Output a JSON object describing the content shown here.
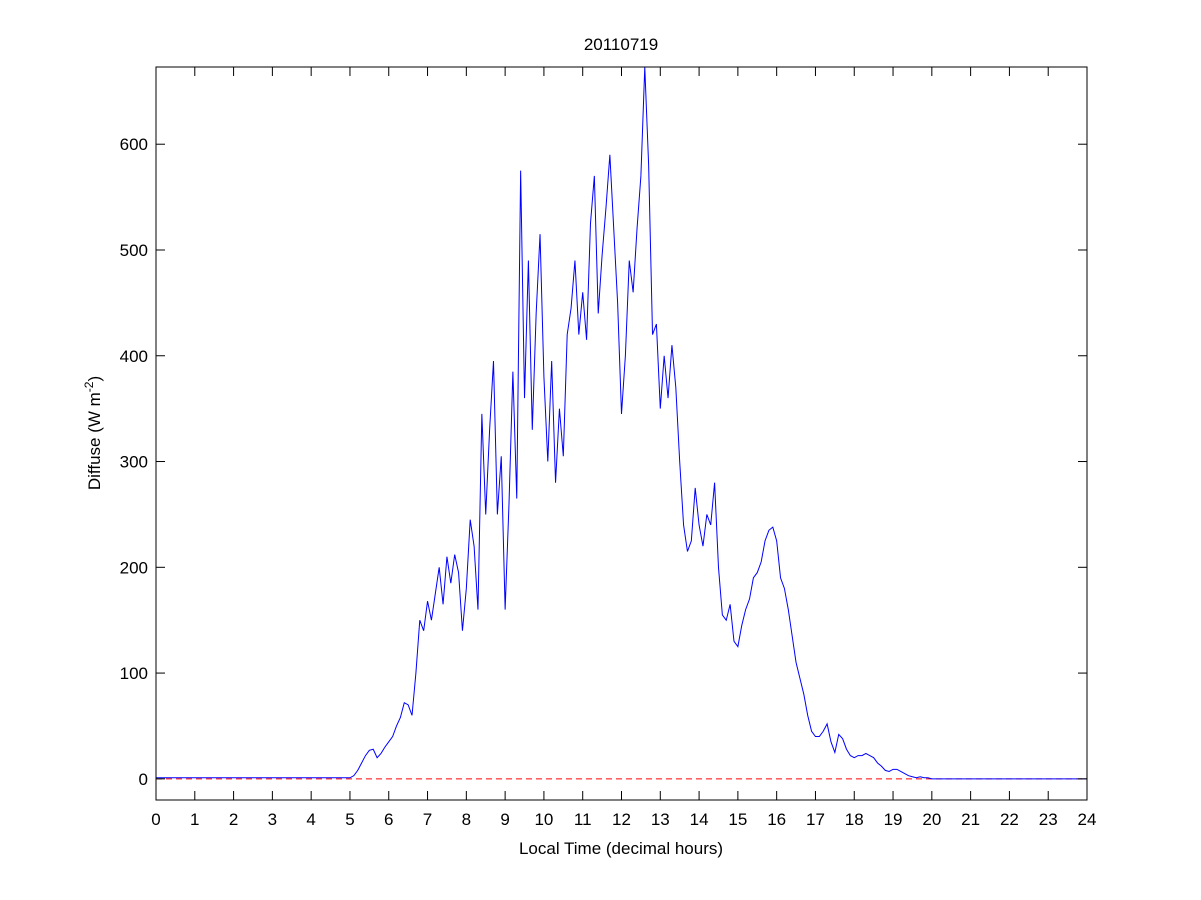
{
  "chart_data": {
    "type": "line",
    "title": "20110719",
    "xlabel": "Local Time (decimal hours)",
    "ylabel": {
      "text": "Diffuse (W m",
      "superscript": "-2",
      "suffix": ")"
    },
    "x": [
      0,
      1,
      2,
      3,
      4,
      5.0,
      5.1,
      5.2,
      5.3,
      5.4,
      5.5,
      5.6,
      5.7,
      5.8,
      5.9,
      6.0,
      6.1,
      6.2,
      6.3,
      6.4,
      6.5,
      6.6,
      6.7,
      6.8,
      6.9,
      7.0,
      7.1,
      7.2,
      7.3,
      7.4,
      7.5,
      7.6,
      7.7,
      7.8,
      7.9,
      8.0,
      8.1,
      8.2,
      8.3,
      8.4,
      8.5,
      8.6,
      8.7,
      8.8,
      8.9,
      9.0,
      9.1,
      9.2,
      9.3,
      9.4,
      9.5,
      9.6,
      9.7,
      9.8,
      9.9,
      10.0,
      10.1,
      10.2,
      10.3,
      10.4,
      10.5,
      10.6,
      10.7,
      10.8,
      10.9,
      11.0,
      11.1,
      11.2,
      11.3,
      11.4,
      11.5,
      11.6,
      11.7,
      11.8,
      11.9,
      12.0,
      12.1,
      12.2,
      12.3,
      12.4,
      12.5,
      12.6,
      12.7,
      12.8,
      12.9,
      13.0,
      13.1,
      13.2,
      13.3,
      13.4,
      13.5,
      13.6,
      13.7,
      13.8,
      13.9,
      14.0,
      14.1,
      14.2,
      14.3,
      14.4,
      14.5,
      14.6,
      14.7,
      14.8,
      14.9,
      15.0,
      15.1,
      15.2,
      15.3,
      15.4,
      15.5,
      15.6,
      15.7,
      15.8,
      15.9,
      16.0,
      16.1,
      16.2,
      16.3,
      16.4,
      16.5,
      16.6,
      16.7,
      16.8,
      16.9,
      17.0,
      17.1,
      17.2,
      17.3,
      17.4,
      17.5,
      17.6,
      17.7,
      17.8,
      17.9,
      18.0,
      18.1,
      18.2,
      18.3,
      18.4,
      18.5,
      18.6,
      18.7,
      18.8,
      18.9,
      19.0,
      19.1,
      19.2,
      19.3,
      19.4,
      19.5,
      19.6,
      19.7,
      19.8,
      19.9,
      20.0,
      21,
      22,
      23,
      24
    ],
    "series": [
      {
        "color": "#0000ff",
        "values": [
          1,
          1,
          1,
          1,
          1,
          1,
          3,
          8,
          15,
          22,
          27,
          28,
          20,
          24,
          30,
          35,
          40,
          50,
          58,
          72,
          70,
          60,
          100,
          150,
          140,
          168,
          150,
          175,
          200,
          165,
          210,
          185,
          212,
          195,
          140,
          180,
          245,
          220,
          160,
          345,
          250,
          330,
          395,
          250,
          305,
          160,
          260,
          385,
          265,
          575,
          360,
          490,
          330,
          440,
          515,
          380,
          300,
          395,
          280,
          350,
          305,
          420,
          445,
          490,
          420,
          460,
          415,
          525,
          570,
          440,
          495,
          540,
          590,
          520,
          450,
          345,
          400,
          490,
          460,
          520,
          570,
          673,
          580,
          420,
          430,
          350,
          400,
          360,
          410,
          370,
          300,
          240,
          215,
          225,
          275,
          240,
          220,
          250,
          240,
          280,
          200,
          155,
          150,
          165,
          130,
          125,
          145,
          160,
          170,
          190,
          195,
          205,
          225,
          235,
          238,
          225,
          190,
          180,
          160,
          135,
          110,
          95,
          80,
          60,
          45,
          40,
          40,
          45,
          52,
          35,
          25,
          42,
          38,
          28,
          22,
          20,
          22,
          22,
          24,
          22,
          20,
          15,
          12,
          8,
          7,
          9,
          9,
          7,
          5,
          3,
          2,
          1,
          2,
          1,
          1,
          0,
          0,
          0,
          0,
          0
        ]
      }
    ],
    "reference_line": {
      "y": 0,
      "color": "#ff0000",
      "style": "dashed"
    },
    "xlim": [
      0,
      24
    ],
    "xticks": [
      0,
      1,
      2,
      3,
      4,
      5,
      6,
      7,
      8,
      9,
      10,
      11,
      12,
      13,
      14,
      15,
      16,
      17,
      18,
      19,
      20,
      21,
      22,
      23,
      24
    ],
    "ylim": [
      -20,
      673
    ],
    "yticks": [
      0,
      100,
      200,
      300,
      400,
      500,
      600
    ],
    "grid": false
  }
}
